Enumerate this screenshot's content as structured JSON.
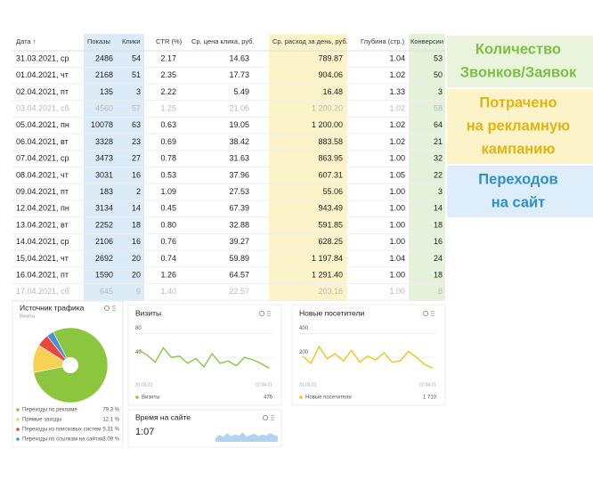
{
  "table": {
    "columns": [
      "Дата ↑",
      "Показы",
      "Клики",
      "CTR (%)",
      "Ср. цена клика, руб.",
      "Ср. расход за день, руб.",
      "Глубина (стр.)",
      "Конверсии"
    ],
    "rows": [
      [
        "31.03.2021, ср",
        "2486",
        "54",
        "2.17",
        "14.63",
        "789.87",
        "1.04",
        "53"
      ],
      [
        "01.04.2021, чт",
        "2168",
        "51",
        "2.35",
        "17.73",
        "904.06",
        "1.02",
        "50"
      ],
      [
        "02.04.2021, пт",
        "135",
        "3",
        "2.22",
        "5.49",
        "16.48",
        "1.33",
        "3"
      ],
      [
        "03.04.2021, сб",
        "4560",
        "57",
        "1.25",
        "21.06",
        "1 200.20",
        "1.02",
        "58"
      ],
      [
        "05.04.2021, пн",
        "10078",
        "63",
        "0.63",
        "19.05",
        "1 200.00",
        "1.02",
        "64"
      ],
      [
        "06.04.2021, вт",
        "3328",
        "23",
        "0.69",
        "38.42",
        "883.58",
        "1.02",
        "21"
      ],
      [
        "07.04.2021, ср",
        "3473",
        "27",
        "0.78",
        "31.63",
        "863.95",
        "1.00",
        "32"
      ],
      [
        "08.04.2021, чт",
        "3031",
        "16",
        "0.53",
        "37.96",
        "607.31",
        "1.05",
        "22"
      ],
      [
        "09.04.2021, пт",
        "183",
        "2",
        "1.09",
        "27.53",
        "55.06",
        "1.00",
        "3"
      ],
      [
        "12.04.2021, пн",
        "3134",
        "14",
        "0.45",
        "67.39",
        "943.49",
        "1.00",
        "14"
      ],
      [
        "13.04.2021, вт",
        "2252",
        "18",
        "0.80",
        "32.88",
        "591.85",
        "1.00",
        "18"
      ],
      [
        "14.04.2021, ср",
        "2106",
        "16",
        "0.76",
        "39.27",
        "628.25",
        "1.00",
        "16"
      ],
      [
        "15.04.2021, чт",
        "2692",
        "20",
        "0.74",
        "59.89",
        "1 197.84",
        "1.04",
        "24"
      ],
      [
        "16.04.2021, пт",
        "1590",
        "20",
        "1.26",
        "64.57",
        "1 291.40",
        "1.00",
        "18"
      ],
      [
        "17.04.2021, сб",
        "645",
        "9",
        "1.40",
        "22.57",
        "203.16",
        "1.00",
        "8"
      ]
    ],
    "muted_rows": [
      3,
      14
    ]
  },
  "callouts": [
    {
      "lines": [
        "Количество",
        "Звонков/Заявок"
      ],
      "color": "#7cbf45",
      "background": "#eaf4dc"
    },
    {
      "lines": [
        "Потрачено",
        "на рекламную",
        "кампанию"
      ],
      "color": "#e2b40e",
      "background": "#fdf3c9"
    },
    {
      "lines": [
        "Переходов",
        "на сайт"
      ],
      "color": "#2d8fcb",
      "background": "#ddeefa"
    }
  ],
  "traffic_source": {
    "title": "Источник трафика",
    "subtitle": "Визиты",
    "slices": [
      {
        "name": "Переходы по рекламе",
        "value": 79.3,
        "label": "79.3 %",
        "color": "#8cc63f"
      },
      {
        "name": "Прямые заходы",
        "value": 12.1,
        "label": "12.1 %",
        "color": "#f7d154"
      },
      {
        "name": "Переходы из поисковых систем",
        "value": 5.31,
        "label": "5.31 %",
        "color": "#e8473f"
      },
      {
        "name": "Переходы по ссылкам на сайтах",
        "value": 3.09,
        "label": "3.09 %",
        "color": "#4a90d9"
      }
    ]
  },
  "visits": {
    "title": "Визиты",
    "ylim": [
      0,
      100
    ],
    "yticks": [
      40,
      80
    ],
    "x_labels": [
      "31.03.21",
      "17.04.21"
    ],
    "values": [
      52,
      44,
      32,
      56,
      40,
      42,
      30,
      38,
      24,
      46,
      30,
      34,
      26,
      40,
      36,
      30,
      22
    ],
    "legend": "Визиты",
    "total": "476",
    "color": "#8cc63f"
  },
  "new_visitors": {
    "title": "Новые посетители",
    "ylim": [
      0,
      500
    ],
    "yticks": [
      200,
      400
    ],
    "x_labels": [
      "31.03.21",
      "17.04.21"
    ],
    "values": [
      210,
      150,
      290,
      190,
      230,
      170,
      260,
      160,
      210,
      180,
      240,
      160,
      170,
      250,
      200,
      140,
      110
    ],
    "legend": "Новые посетители",
    "total": "1 710",
    "color": "#f0c419"
  },
  "time_on_site": {
    "title": "Время на сайте",
    "value": "1:07",
    "values": [
      30,
      55,
      40,
      70,
      45,
      60,
      50,
      75,
      40,
      55,
      65,
      45,
      60,
      50,
      70,
      55,
      45
    ],
    "color": "#9cc8ec"
  }
}
